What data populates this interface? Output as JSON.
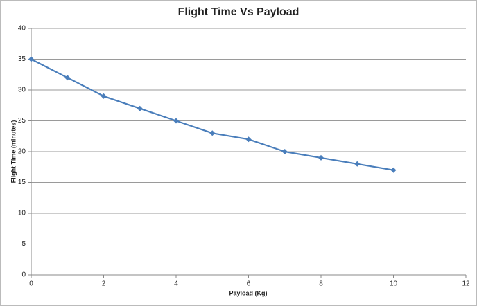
{
  "chart_data": {
    "type": "line",
    "title": "Flight Time Vs Payload",
    "x_label": "Payload (Kg)",
    "y_label": "Flight Time (minutes)",
    "x": [
      0,
      1,
      2,
      3,
      4,
      5,
      6,
      7,
      8,
      9,
      10
    ],
    "series": [
      {
        "name": "Flight Time",
        "color": "#4a7ebb",
        "values": [
          35,
          32,
          29,
          27,
          25,
          23,
          22,
          20,
          19,
          18,
          17
        ]
      }
    ],
    "xlim": [
      0,
      12
    ],
    "xticks": [
      0,
      2,
      4,
      6,
      8,
      10,
      12
    ],
    "ylim": [
      0,
      40
    ],
    "yticks": [
      0,
      5,
      10,
      15,
      20,
      25,
      30,
      35,
      40
    ],
    "grid": true,
    "legend": false
  }
}
